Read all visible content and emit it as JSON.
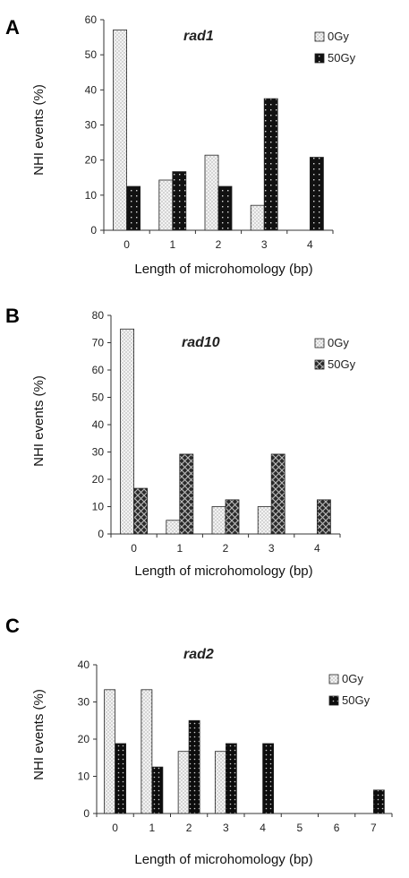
{
  "chart_data": [
    {
      "type": "bar",
      "panel_letter": "A",
      "title": "rad1",
      "xlabel": "Length of microhomology (bp)",
      "ylabel": "NHI events (%)",
      "ylim": [
        0,
        60
      ],
      "yticks": [
        0,
        10,
        20,
        30,
        40,
        50,
        60
      ],
      "categories": [
        "0",
        "1",
        "2",
        "3",
        "4"
      ],
      "legend_position": "top-right",
      "series": [
        {
          "name": "0Gy",
          "values": [
            57.1,
            14.3,
            21.4,
            7.1,
            0
          ],
          "fill": "light-dotted"
        },
        {
          "name": "50Gy",
          "values": [
            12.5,
            16.7,
            12.5,
            37.5,
            20.8
          ],
          "fill": "dark-grid"
        }
      ]
    },
    {
      "type": "bar",
      "panel_letter": "B",
      "title": "rad10",
      "xlabel": "Length of microhomology (bp)",
      "ylabel": "NHI events (%)",
      "ylim": [
        0,
        80
      ],
      "yticks": [
        0,
        10,
        20,
        30,
        40,
        50,
        60,
        70,
        80
      ],
      "categories": [
        "0",
        "1",
        "2",
        "3",
        "4"
      ],
      "legend_position": "top-right",
      "series": [
        {
          "name": "0Gy",
          "values": [
            75.0,
            5.0,
            10.0,
            10.0,
            0
          ],
          "fill": "light-dotted"
        },
        {
          "name": "50Gy",
          "values": [
            16.7,
            29.2,
            12.5,
            29.2,
            12.5
          ],
          "fill": "dark-crosshatch"
        }
      ]
    },
    {
      "type": "bar",
      "panel_letter": "C",
      "title": "rad2",
      "xlabel": "Length of microhomology (bp)",
      "ylabel": "NHI events (%)",
      "ylim": [
        0,
        40
      ],
      "yticks": [
        0,
        10,
        20,
        30,
        40
      ],
      "categories": [
        "0",
        "1",
        "2",
        "3",
        "4",
        "5",
        "6",
        "7"
      ],
      "legend_position": "top-right",
      "series": [
        {
          "name": "0Gy",
          "values": [
            33.3,
            33.3,
            16.7,
            16.7,
            0,
            0,
            0,
            0
          ],
          "fill": "light-dotted"
        },
        {
          "name": "50Gy",
          "values": [
            18.8,
            12.5,
            25.0,
            18.8,
            18.8,
            0,
            0,
            6.3
          ],
          "fill": "dark-dots"
        }
      ]
    }
  ],
  "colors": {
    "light_bar_bg": "#f2f2f2",
    "light_bar_dot": "#8a8a8a",
    "dark_bar_bg": "#111111",
    "dark_bar_mark": "#d8d8d8",
    "axis": "#333333"
  }
}
